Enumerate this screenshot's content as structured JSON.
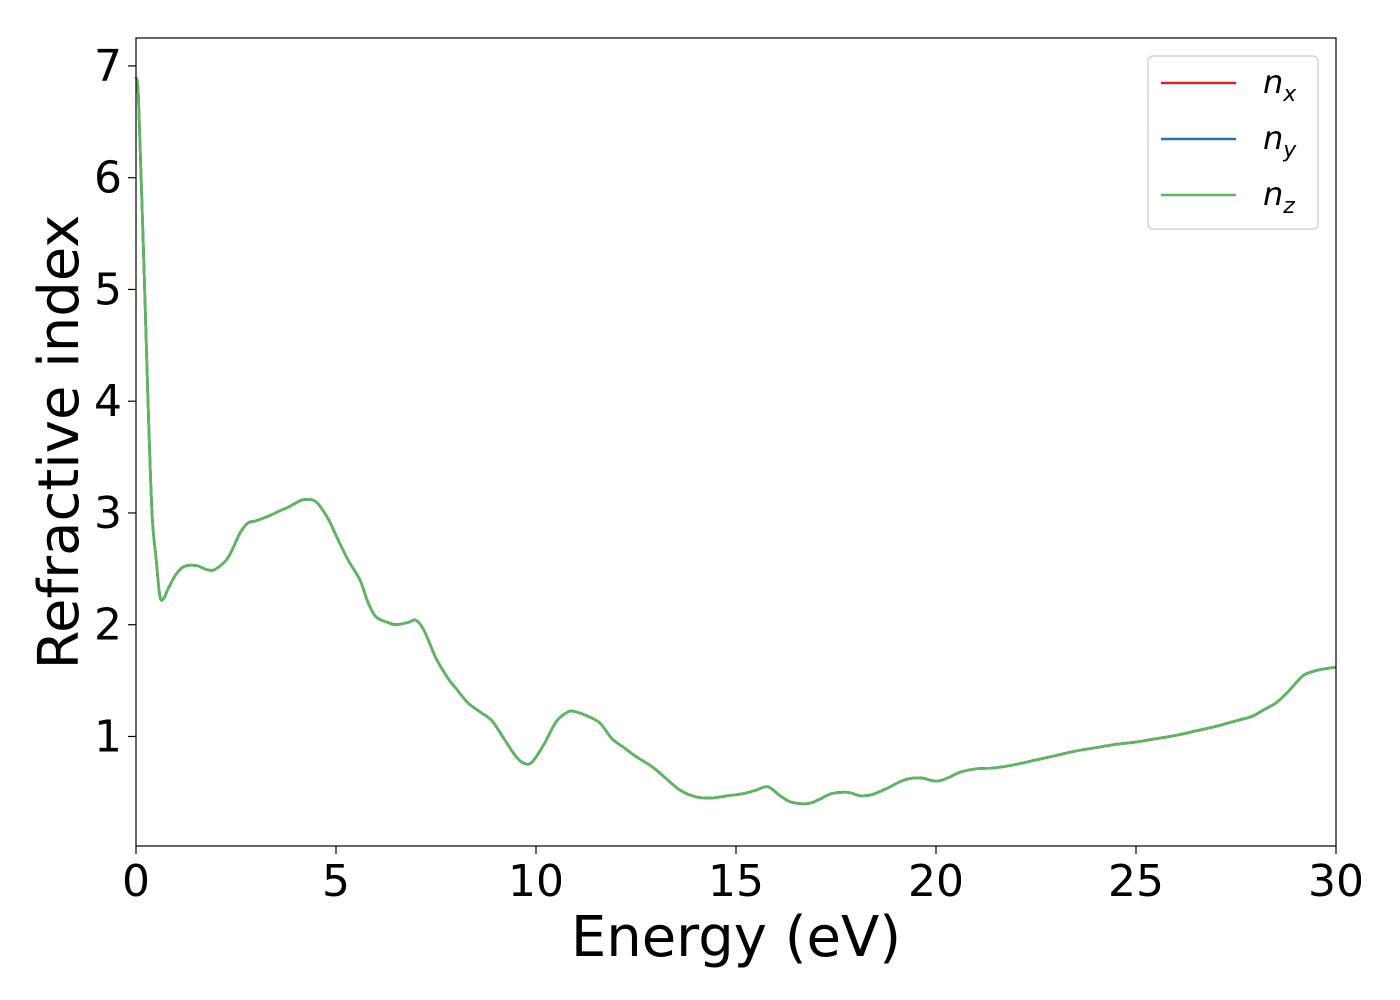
{
  "chart_data": {
    "type": "line",
    "title": "",
    "xlabel": "Energy (eV)",
    "ylabel": "Refractive index",
    "xlim": [
      0,
      30
    ],
    "ylim": [
      0.02,
      7.25
    ],
    "xticks": [
      0,
      5,
      10,
      15,
      20,
      25,
      30
    ],
    "yticks": [
      1,
      2,
      3,
      4,
      5,
      6,
      7
    ],
    "grid": false,
    "legend_position": "top-right",
    "x": [
      0.0,
      0.05,
      0.1,
      0.2,
      0.3,
      0.4,
      0.5,
      0.6,
      0.7,
      0.8,
      1.0,
      1.2,
      1.5,
      1.8,
      2.0,
      2.3,
      2.6,
      2.8,
      3.0,
      3.3,
      3.6,
      3.8,
      4.0,
      4.2,
      4.5,
      4.8,
      5.0,
      5.3,
      5.6,
      5.8,
      6.0,
      6.3,
      6.5,
      6.8,
      7.0,
      7.2,
      7.5,
      7.8,
      8.0,
      8.3,
      8.6,
      8.9,
      9.2,
      9.5,
      9.7,
      9.9,
      10.2,
      10.5,
      10.8,
      11.0,
      11.3,
      11.6,
      11.9,
      12.2,
      12.5,
      12.9,
      13.2,
      13.6,
      14.0,
      14.4,
      14.8,
      15.2,
      15.5,
      15.8,
      16.1,
      16.4,
      16.8,
      17.1,
      17.4,
      17.8,
      18.1,
      18.4,
      18.8,
      19.2,
      19.6,
      20.0,
      20.3,
      20.6,
      21.0,
      21.5,
      22.0,
      22.5,
      23.0,
      23.5,
      24.0,
      24.5,
      25.0,
      25.5,
      26.0,
      26.5,
      27.0,
      27.5,
      27.9,
      28.2,
      28.5,
      28.8,
      29.0,
      29.2,
      29.5,
      29.8,
      30.0
    ],
    "series": [
      {
        "name": "n_x",
        "label_main": "n",
        "label_sub": "x",
        "color": "#d62728"
      },
      {
        "name": "n_y",
        "label_main": "n",
        "label_sub": "y",
        "color": "#1f77b4"
      },
      {
        "name": "n_z",
        "label_main": "n",
        "label_sub": "z",
        "color": "#5cb85c"
      }
    ],
    "values": [
      6.9,
      6.8,
      6.3,
      5.2,
      4.0,
      3.0,
      2.6,
      2.25,
      2.24,
      2.32,
      2.45,
      2.52,
      2.53,
      2.49,
      2.5,
      2.6,
      2.82,
      2.91,
      2.93,
      2.97,
      3.02,
      3.05,
      3.09,
      3.12,
      3.1,
      2.95,
      2.8,
      2.58,
      2.4,
      2.2,
      2.07,
      2.02,
      2.0,
      2.02,
      2.04,
      1.95,
      1.7,
      1.52,
      1.43,
      1.3,
      1.22,
      1.14,
      0.98,
      0.82,
      0.76,
      0.77,
      0.93,
      1.13,
      1.22,
      1.22,
      1.18,
      1.12,
      0.98,
      0.9,
      0.82,
      0.73,
      0.64,
      0.52,
      0.46,
      0.45,
      0.47,
      0.49,
      0.52,
      0.55,
      0.47,
      0.41,
      0.4,
      0.44,
      0.49,
      0.5,
      0.47,
      0.48,
      0.54,
      0.61,
      0.63,
      0.6,
      0.63,
      0.68,
      0.71,
      0.72,
      0.75,
      0.79,
      0.83,
      0.87,
      0.9,
      0.93,
      0.95,
      0.98,
      1.01,
      1.05,
      1.09,
      1.14,
      1.18,
      1.24,
      1.3,
      1.4,
      1.48,
      1.55,
      1.59,
      1.61,
      1.62
    ]
  }
}
